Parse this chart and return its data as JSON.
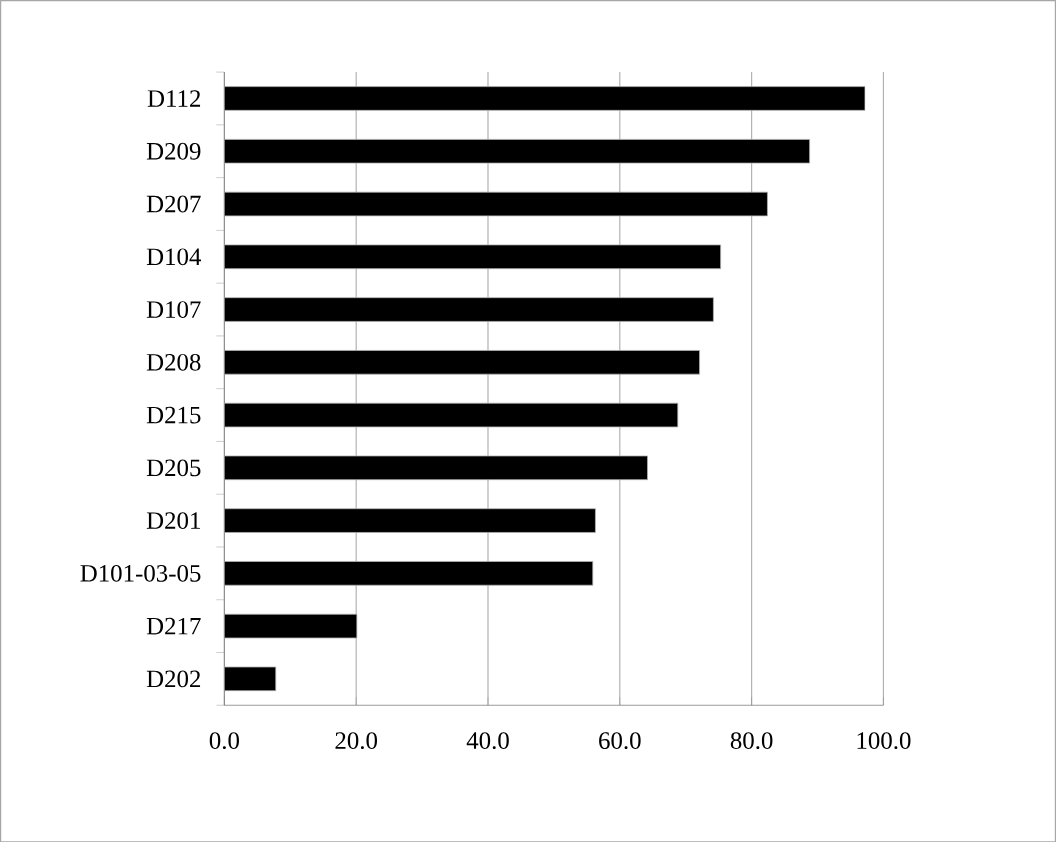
{
  "chart_data": {
    "type": "bar",
    "orientation": "horizontal",
    "categories": [
      "D112",
      "D209",
      "D207",
      "D104",
      "D107",
      "D208",
      "D215",
      "D205",
      "D201",
      "D101-03-05",
      "D217",
      "D202"
    ],
    "values": [
      97.2,
      88.8,
      82.4,
      75.3,
      74.2,
      72.1,
      68.8,
      64.2,
      56.3,
      55.9,
      20.1,
      7.8
    ],
    "color": "#000000",
    "xlim": [
      0,
      100
    ],
    "xticks": [
      {
        "value": 0,
        "label": "0.0"
      },
      {
        "value": 20,
        "label": "20.0"
      },
      {
        "value": 40,
        "label": "40.0"
      },
      {
        "value": 60,
        "label": "60.0"
      },
      {
        "value": 80,
        "label": "80.0"
      },
      {
        "value": 100,
        "label": "100.0"
      }
    ],
    "grid": "x"
  }
}
